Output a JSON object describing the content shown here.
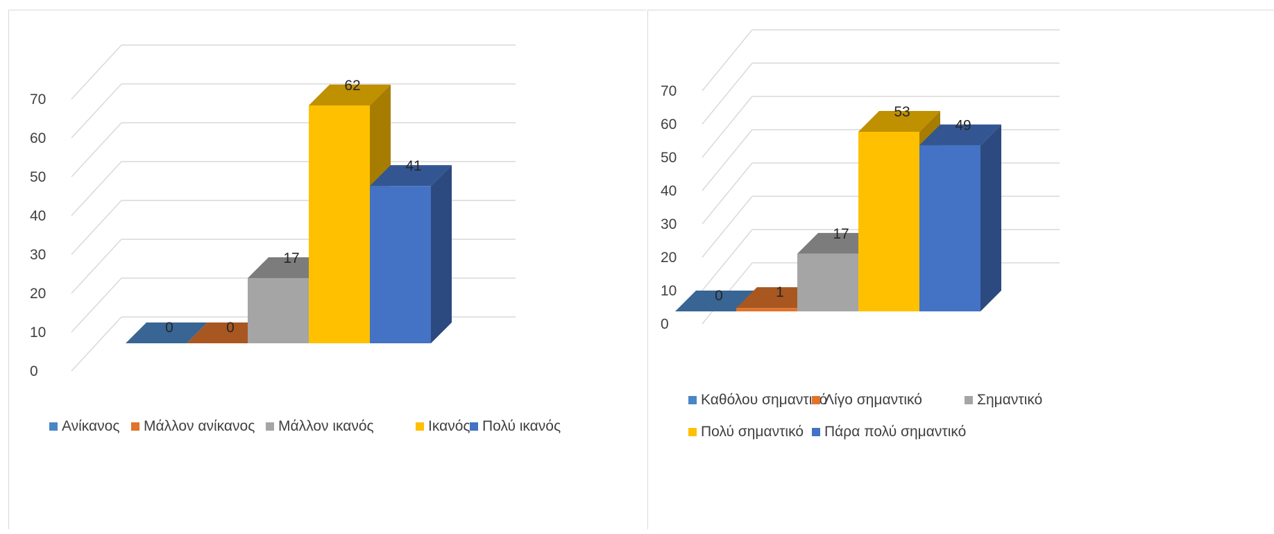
{
  "chart_data": [
    {
      "type": "bar",
      "categories": [
        "Ανίκανος",
        "Μάλλον ανίκανος",
        "Μάλλον ικανός",
        "Ικανός",
        "Πολύ ικανός"
      ],
      "values": [
        0,
        0,
        17,
        62,
        41
      ],
      "data_labels": [
        "0",
        "0",
        "17",
        "62",
        "41"
      ],
      "colors": [
        "#4a86c5",
        "#e0742c",
        "#a5a5a5",
        "#ffc000",
        "#4472c4"
      ],
      "yticks": [
        "0",
        "10",
        "20",
        "30",
        "40",
        "50",
        "60",
        "70"
      ],
      "ylim": [
        0,
        70
      ],
      "grid": true,
      "legend_position": "bottom",
      "style": "3d-column"
    },
    {
      "type": "bar",
      "categories": [
        "Καθόλου σημαντικό",
        "Λίγο σημαντικό",
        "Σημαντικό",
        "Πολύ σημαντικό",
        "Πάρα πολύ σημαντικό"
      ],
      "values": [
        0,
        1,
        17,
        53,
        49
      ],
      "data_labels": [
        "0",
        "1",
        "17",
        "53",
        "49"
      ],
      "colors": [
        "#4a86c5",
        "#e0742c",
        "#a5a5a5",
        "#ffc000",
        "#4472c4"
      ],
      "yticks": [
        "0",
        "10",
        "20",
        "30",
        "40",
        "50",
        "60",
        "70"
      ],
      "ylim": [
        0,
        70
      ],
      "grid": true,
      "legend_position": "bottom",
      "style": "3d-column"
    }
  ]
}
